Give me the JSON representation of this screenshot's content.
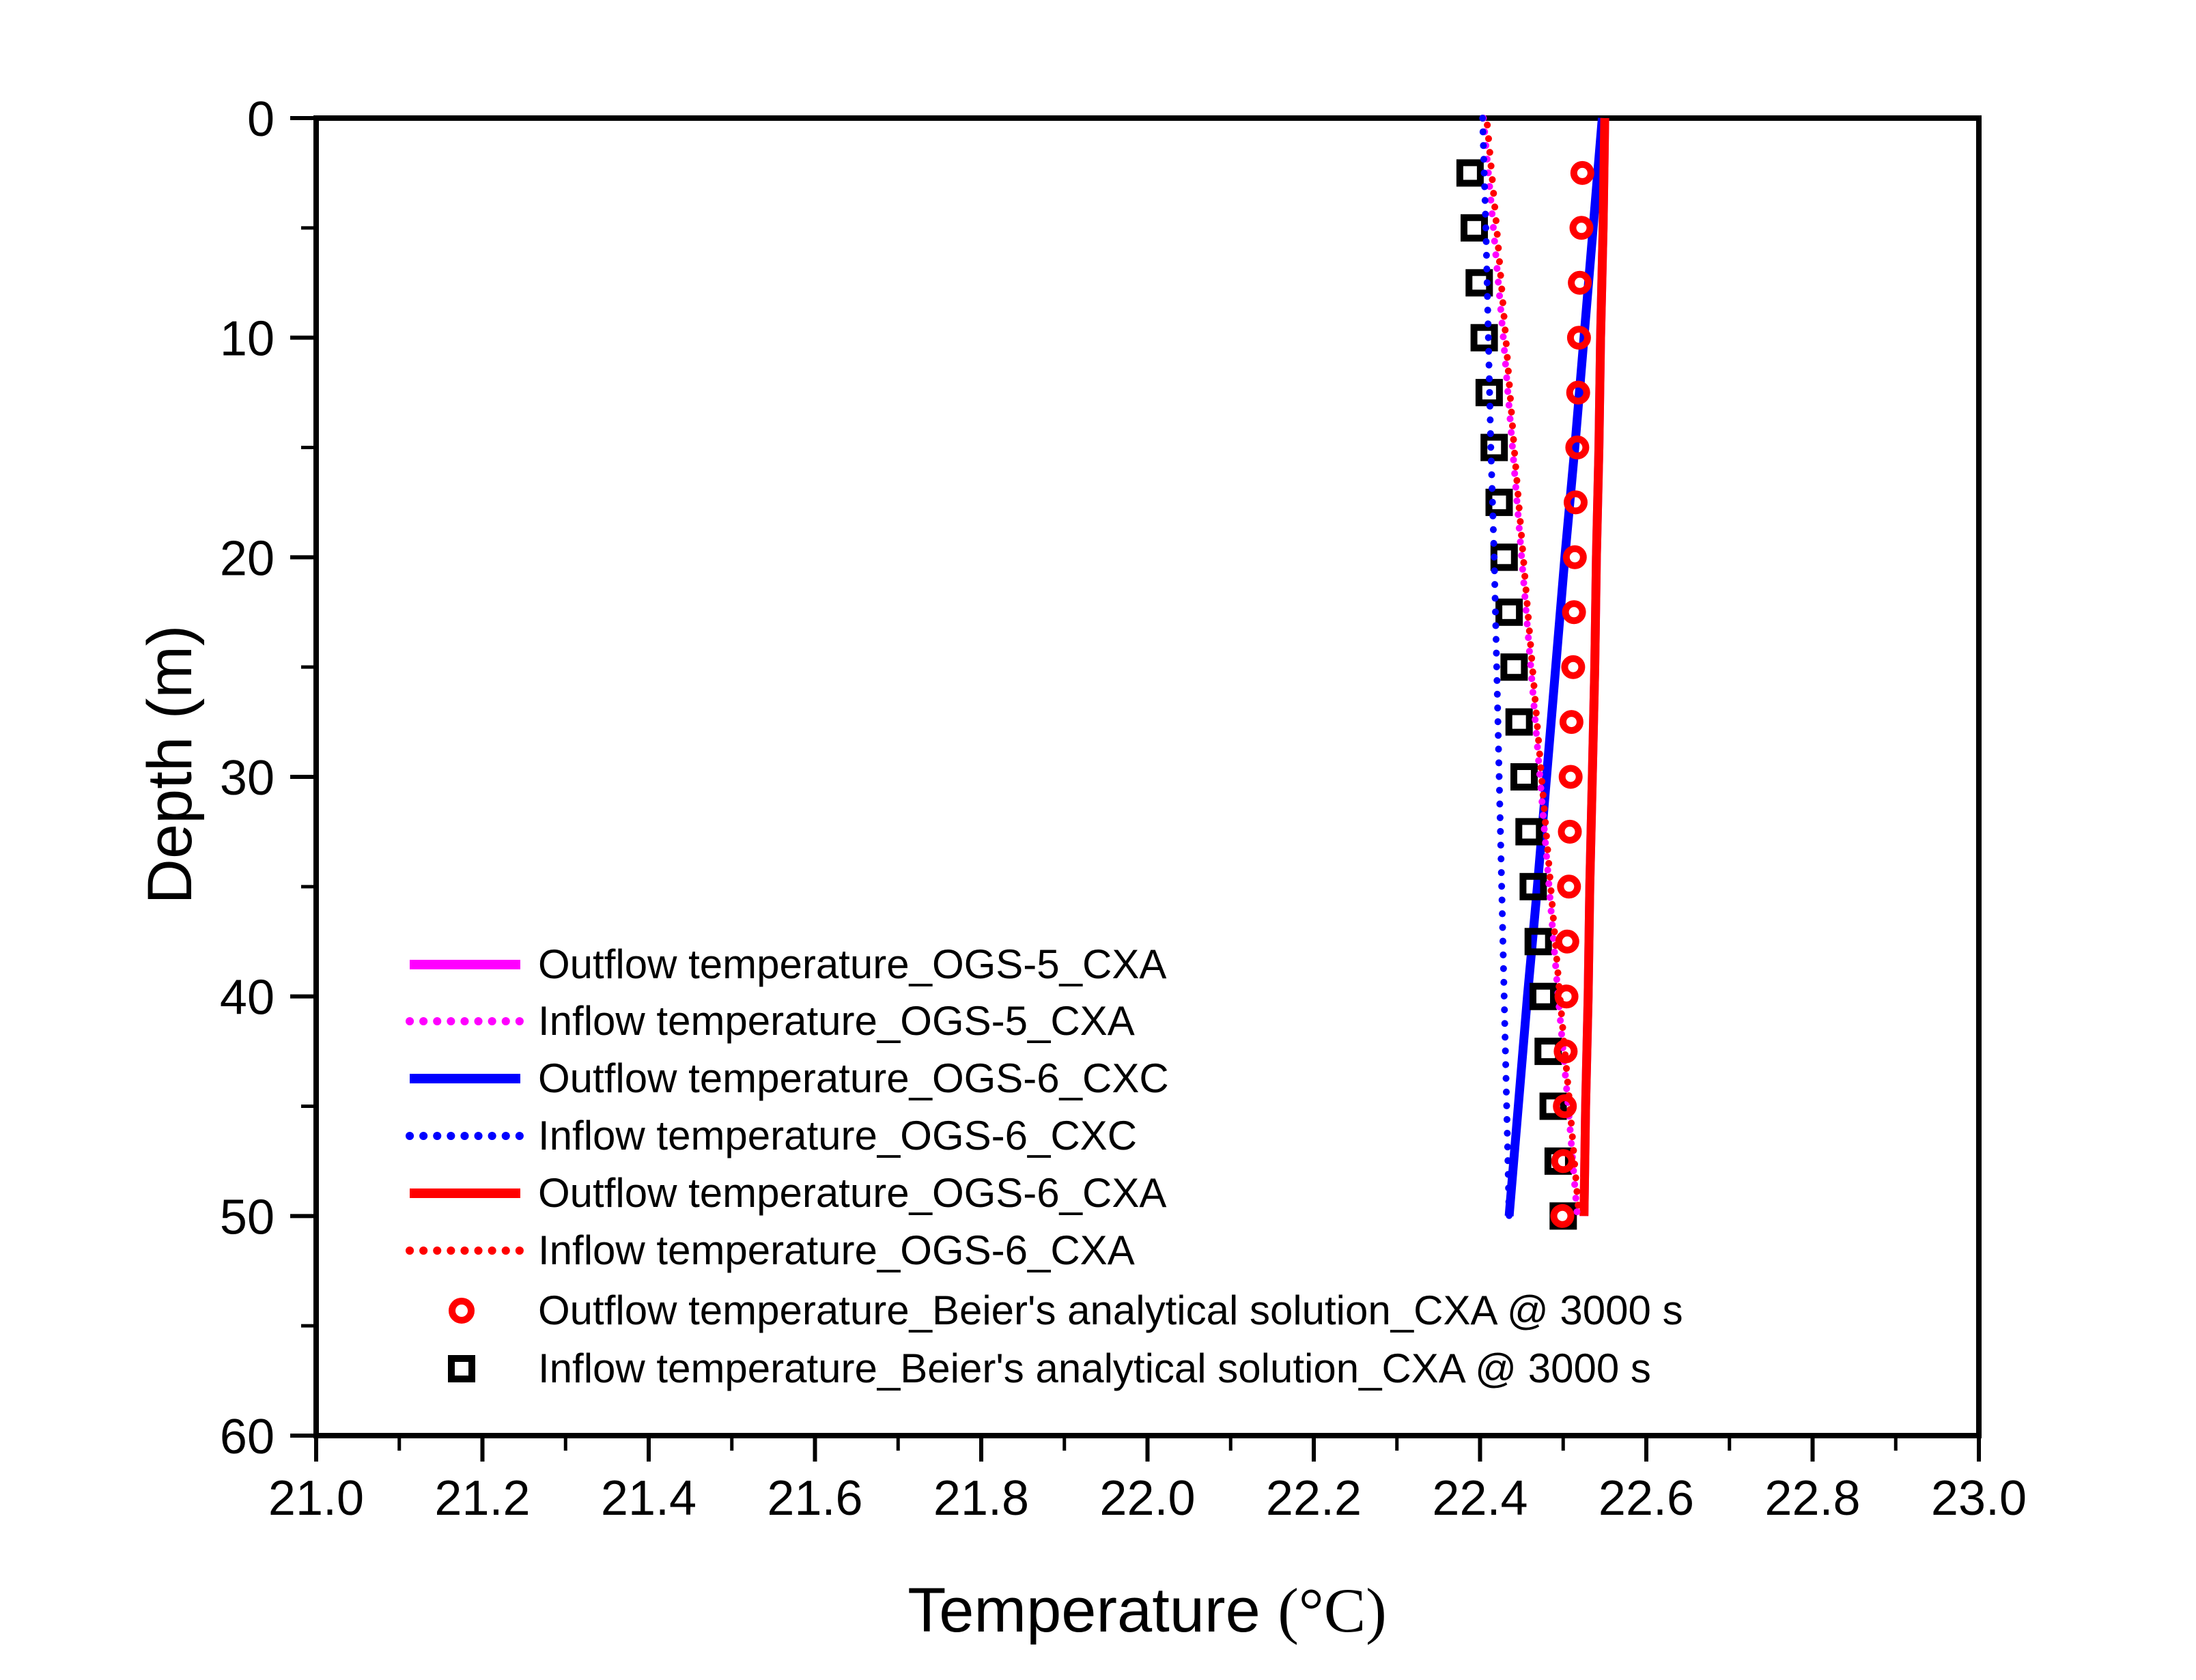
{
  "chart_data": {
    "type": "line",
    "title": "",
    "xlabel": "Temperature (°C)",
    "xlabel_parts": {
      "main": "Temperature ",
      "unit": "(°C)"
    },
    "ylabel": "Depth (m)",
    "x_axis": {
      "min": 21.0,
      "max": 23.0,
      "major_step": 0.2,
      "minor_step": 0.1,
      "tick_labels": [
        "21.0",
        "21.2",
        "21.4",
        "21.6",
        "21.8",
        "22.0",
        "22.2",
        "22.4",
        "22.6",
        "22.8",
        "23.0"
      ]
    },
    "y_axis": {
      "min": 0,
      "max": 60,
      "major_step": 10,
      "minor_step": 5,
      "inverted": true,
      "tick_labels": [
        "0",
        "10",
        "20",
        "30",
        "40",
        "50",
        "60"
      ]
    },
    "grid": false,
    "legend_position": "inside-bottom-left",
    "series": [
      {
        "name": "Outflow temperature_OGS-5_CXA",
        "color": "#FF00FF",
        "style": "solid",
        "depth": [
          0,
          5,
          10,
          15,
          20,
          25,
          30,
          35,
          40,
          45,
          50
        ],
        "temperature": [
          22.55,
          22.548,
          22.545,
          22.543,
          22.54,
          22.538,
          22.535,
          22.532,
          22.53,
          22.527,
          22.525
        ]
      },
      {
        "name": "Inflow temperature_OGS-5_CXA",
        "color": "#FF00FF",
        "style": "dotted",
        "depth": [
          0,
          5,
          10,
          15,
          20,
          25,
          30,
          35,
          40,
          45,
          50
        ],
        "temperature": [
          22.404,
          22.416,
          22.428,
          22.439,
          22.45,
          22.461,
          22.472,
          22.483,
          22.494,
          22.506,
          22.517
        ]
      },
      {
        "name": "Outflow temperature_OGS-6_CXC",
        "color": "#0000FF",
        "style": "solid",
        "depth": [
          0,
          5,
          10,
          15,
          20,
          25,
          30,
          35,
          40,
          45,
          50
        ],
        "temperature": [
          22.547,
          22.536,
          22.525,
          22.514,
          22.502,
          22.491,
          22.48,
          22.469,
          22.457,
          22.446,
          22.435
        ]
      },
      {
        "name": "Inflow temperature_OGS-6_CXC",
        "color": "#0000FF",
        "style": "dotted",
        "depth": [
          0,
          5,
          10,
          15,
          20,
          25,
          30,
          35,
          40,
          45,
          50
        ],
        "temperature": [
          22.403,
          22.407,
          22.41,
          22.413,
          22.417,
          22.42,
          22.423,
          22.426,
          22.429,
          22.432,
          22.435
        ]
      },
      {
        "name": "Outflow temperature_OGS-6_CXA",
        "color": "#FF0000",
        "style": "solid",
        "depth": [
          0,
          5,
          10,
          15,
          20,
          25,
          30,
          35,
          40,
          45,
          50
        ],
        "temperature": [
          22.55,
          22.548,
          22.545,
          22.543,
          22.54,
          22.538,
          22.535,
          22.532,
          22.53,
          22.527,
          22.525
        ]
      },
      {
        "name": "Inflow temperature_OGS-6_CXA",
        "color": "#FF0000",
        "style": "dotted",
        "depth": [
          0,
          5,
          10,
          15,
          20,
          25,
          30,
          35,
          40,
          45,
          50
        ],
        "temperature": [
          22.408,
          22.42,
          22.431,
          22.441,
          22.452,
          22.463,
          22.474,
          22.485,
          22.496,
          22.508,
          22.519
        ]
      },
      {
        "name": "Outflow temperature_Beier's analytical solution_CXA @ 3000 s",
        "color": "#FF0000",
        "style": "scatter-circle",
        "depth": [
          2.5,
          5,
          7.5,
          10,
          12.5,
          15,
          17.5,
          20,
          22.5,
          25,
          27.5,
          30,
          32.5,
          35,
          37.5,
          40,
          42.5,
          45,
          47.5,
          50
        ],
        "temperature": [
          22.523,
          22.522,
          22.52,
          22.519,
          22.518,
          22.517,
          22.515,
          22.514,
          22.513,
          22.512,
          22.51,
          22.509,
          22.508,
          22.507,
          22.505,
          22.504,
          22.503,
          22.502,
          22.5,
          22.499
        ]
      },
      {
        "name": "Inflow temperature_Beier's analytical solution_CXA @ 3000 s",
        "color": "#000000",
        "style": "scatter-square",
        "depth": [
          2.5,
          5,
          7.5,
          10,
          12.5,
          15,
          17.5,
          20,
          22.5,
          25,
          27.5,
          30,
          32.5,
          35,
          37.5,
          40,
          42.5,
          45,
          47.5,
          50
        ],
        "temperature": [
          22.388,
          22.393,
          22.399,
          22.405,
          22.411,
          22.417,
          22.423,
          22.429,
          22.435,
          22.441,
          22.447,
          22.453,
          22.459,
          22.464,
          22.47,
          22.476,
          22.482,
          22.488,
          22.494,
          22.5
        ]
      }
    ]
  }
}
